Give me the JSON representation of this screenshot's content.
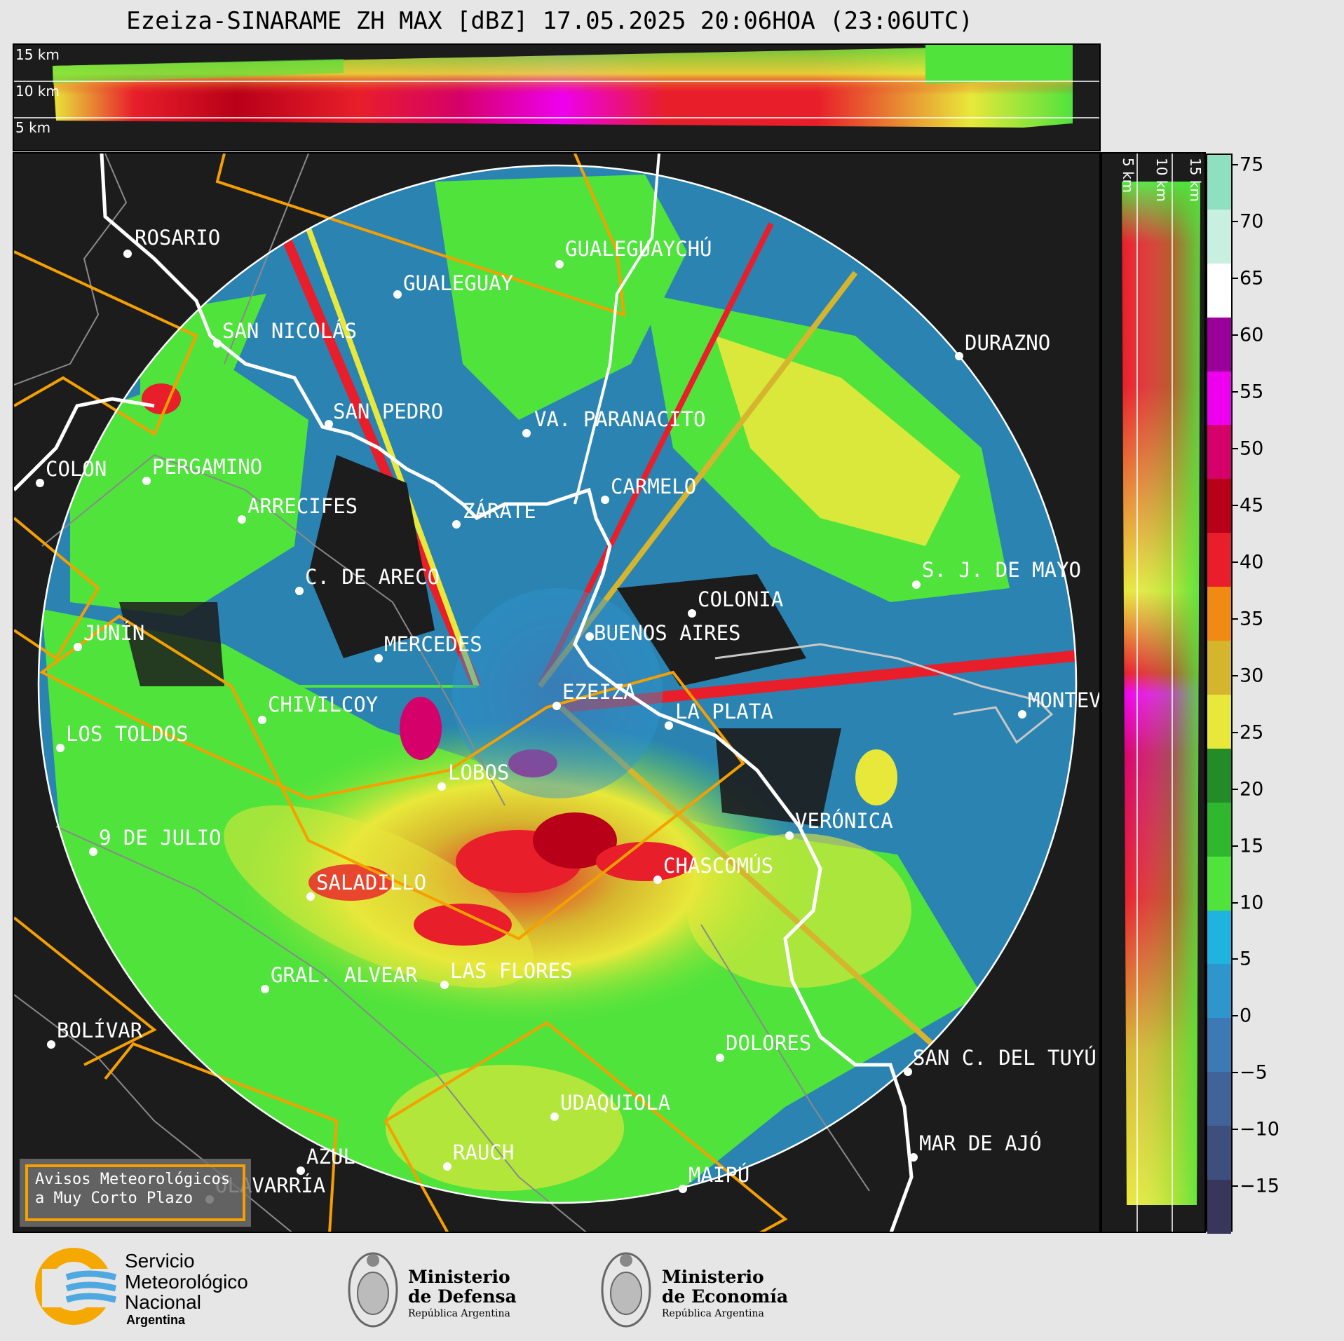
{
  "title": "Ezeiza-SINARAME ZH MAX [dBZ] 17.05.2025 20:06HOA (23:06UTC)",
  "top_panel": {
    "km_labels": [
      "15 km",
      "10 km",
      "5 km"
    ]
  },
  "side_panel": {
    "km_labels": [
      "5 km",
      "10 km",
      "15 km"
    ]
  },
  "colorbar": {
    "unit": "dBZ",
    "ticks": [
      "75",
      "70",
      "65",
      "60",
      "55",
      "50",
      "45",
      "40",
      "35",
      "30",
      "25",
      "20",
      "15",
      "10",
      "5",
      "0",
      "−5",
      "−10",
      "−15"
    ],
    "range": [
      -19,
      76
    ],
    "colors": [
      "#38365a",
      "#3e4f7e",
      "#40639a",
      "#3d7ab5",
      "#2e95cd",
      "#1fb3e0",
      "#4fe33c",
      "#2fb82e",
      "#238c26",
      "#e8e83a",
      "#d6b52e",
      "#f08a12",
      "#e81e2a",
      "#b80018",
      "#d6006a",
      "#ee00ee",
      "#9a0099",
      "#ffffff",
      "#c8f0e0",
      "#8fe0c0"
    ]
  },
  "cities": [
    {
      "name": "ROSARIO"
    },
    {
      "name": "GUALEGUAYCHÚ"
    },
    {
      "name": "GUALEGUAY"
    },
    {
      "name": "SAN NICOLÁS"
    },
    {
      "name": "DURAZNO"
    },
    {
      "name": "SAN PEDRO"
    },
    {
      "name": "VA. PARANACITO"
    },
    {
      "name": "COLON"
    },
    {
      "name": "PERGAMINO"
    },
    {
      "name": "CARMELO"
    },
    {
      "name": "ARRECIFES"
    },
    {
      "name": "ZÁRATE"
    },
    {
      "name": "S. J. DE MAYO"
    },
    {
      "name": "C. DE ARECO"
    },
    {
      "name": "COLONIA"
    },
    {
      "name": "JUNÍN"
    },
    {
      "name": "BUENOS AIRES"
    },
    {
      "name": "MERCEDES"
    },
    {
      "name": "EZEIZA"
    },
    {
      "name": "MONTEV"
    },
    {
      "name": "CHIVILCOY"
    },
    {
      "name": "LA PLATA"
    },
    {
      "name": "LOS TOLDOS"
    },
    {
      "name": "LOBOS"
    },
    {
      "name": "VERÓNICA"
    },
    {
      "name": "9 DE JULIO"
    },
    {
      "name": "CHASCOMÚS"
    },
    {
      "name": "SALADILLO"
    },
    {
      "name": "GRAL. ALVEAR"
    },
    {
      "name": "LAS FLORES"
    },
    {
      "name": "BOLÍVAR"
    },
    {
      "name": "DOLORES"
    },
    {
      "name": "SAN C. DEL TUYÚ"
    },
    {
      "name": "UDAQUIOLA"
    },
    {
      "name": "MAR DE AJÓ"
    },
    {
      "name": "AZUL"
    },
    {
      "name": "RAUCH"
    },
    {
      "name": "OLAVARRÍA"
    },
    {
      "name": "MAIPÚ"
    }
  ],
  "warning_box": {
    "line1": "Avisos Meteorológicos",
    "line2": "a Muy Corto Plazo"
  },
  "footer": {
    "smn_line1": "Servicio",
    "smn_line2": "Meteorológico",
    "smn_line3": "Nacional",
    "smn_line4": "Argentina",
    "defensa_line1": "Ministerio",
    "defensa_line2": "de Defensa",
    "defensa_line3": "República Argentina",
    "economia_line1": "Ministerio",
    "economia_line2": "de Economía",
    "economia_line3": "República Argentina"
  },
  "colors": {
    "map_background": "#1c1c1c",
    "range_ring": "#ffffff",
    "province_lines": "#8a8a8a",
    "warning_polygons": "#f5a000",
    "river_coast": "#ffffff"
  }
}
